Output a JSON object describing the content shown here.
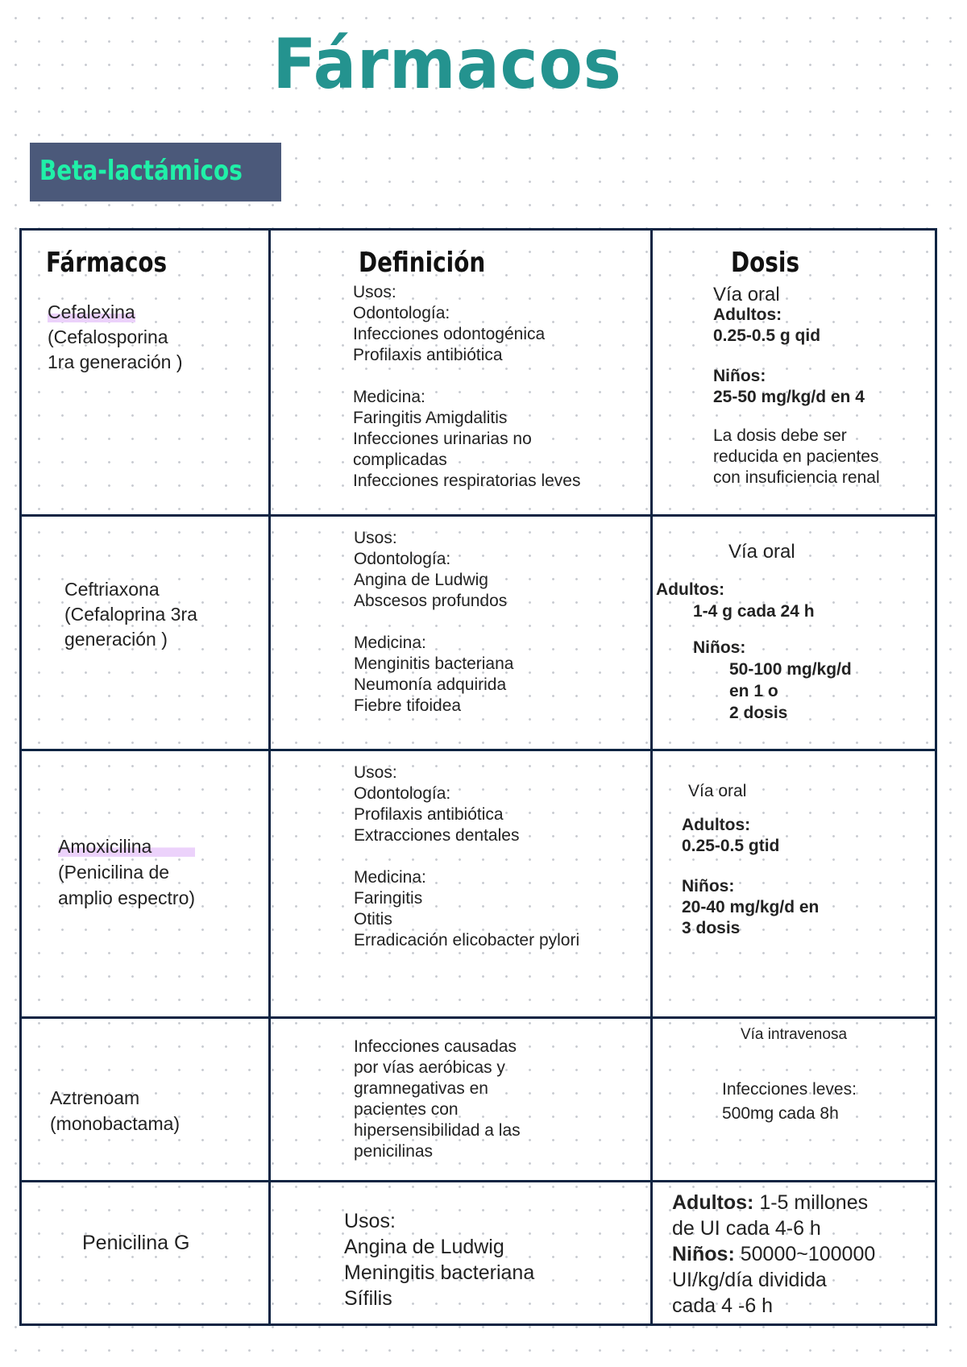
{
  "title": "Fármacos",
  "section": "Beta-lactámicos",
  "headers": [
    "Fármacos",
    "Definición",
    "Dosis"
  ],
  "rows": [
    {
      "drug": [
        "Cefalexina",
        "(Cefalosporina",
        "1ra generación )"
      ],
      "def": [
        "Usos:",
        "Odontología:",
        "Infecciones odontogénica",
        "Profilaxis antibiótica",
        "",
        "Medicina:",
        "Faringitis Amigdalitis",
        "Infecciones urinarias no",
        "complicadas",
        "Infecciones respiratorias leves"
      ],
      "dose": [
        "Vía oral",
        "Adultos:",
        "0.25-0.5 g qid",
        "Niños:",
        "25-50 mg/kg/d en 4",
        "La dosis debe ser",
        "reducida en pacientes",
        "con insuficiencia renal"
      ]
    },
    {
      "drug": [
        "Ceftriaxona",
        "(Cefaloprina 3ra",
        "generación )"
      ],
      "def": [
        "Usos:",
        "Odontología:",
        "Angina de Ludwig",
        "Abscesos profundos",
        "",
        "Medicina:",
        "Menginitis bacteriana",
        "Neumonía adquirida",
        "Fiebre tifoidea"
      ],
      "dose": [
        "Vía oral",
        "Adultos:",
        "1-4 g cada 24 h",
        "Niños:",
        "50-100 mg/kg/d",
        "en 1 o",
        "2 dosis"
      ]
    },
    {
      "drug": [
        "Amoxicilina",
        "(Penicilina de",
        "amplio espectro)"
      ],
      "def": [
        "Usos:",
        "Odontología:",
        "Profilaxis antibiótica",
        "Extracciones dentales",
        "",
        "Medicina:",
        "Faringitis",
        "Otitis",
        "Erradicación elicobacter pylori"
      ],
      "dose": [
        "Vía oral",
        "Adultos:",
        "0.25-0.5 gtid",
        "Niños:",
        "20-40 mg/kg/d en",
        "3 dosis"
      ]
    },
    {
      "drug": [
        "Aztrenoam",
        "(monobactama)"
      ],
      "def": [
        "Infecciones causadas",
        "por vías aeróbicas y",
        "gramnegativas en",
        "pacientes con",
        "hipersensibilidad a las",
        "penicilinas"
      ],
      "dose": [
        "Vía intravenosa",
        "Infecciones leves:",
        "500mg cada 8h"
      ]
    },
    {
      "drug": [
        "Penicilina G"
      ],
      "def": [
        "Usos:",
        "Angina de Ludwig",
        "Meningitis bacteriana",
        "Sífilis"
      ],
      "dose": [
        "Adultos:",
        " 1-5 millones",
        "de UI cada 4-6 h",
        "Niños:",
        " 50000~100000",
        "UI/kg/día dividida",
        "cada 4 -6 h"
      ]
    }
  ],
  "colors": {
    "title": "#24938f",
    "section_bg": "#4b597a",
    "section_text": "#20f0a8",
    "border": "#0f2442",
    "highlight": "#ecd2fb"
  }
}
